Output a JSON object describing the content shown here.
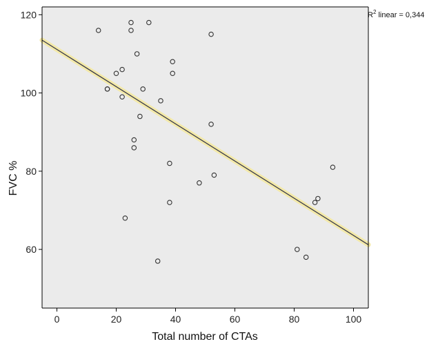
{
  "chart_data": {
    "type": "scatter",
    "xlabel": "Total number of CTAs",
    "ylabel": "FVC %",
    "xlim": [
      -5,
      105
    ],
    "ylim": [
      45,
      122
    ],
    "x_ticks": [
      0,
      20,
      40,
      60,
      80,
      100
    ],
    "y_ticks": [
      60,
      80,
      100,
      120
    ],
    "x_tick_labels": [
      "0",
      "20",
      "40",
      "60",
      "80",
      "100"
    ],
    "y_tick_labels": [
      "60",
      "80",
      "100",
      "120"
    ],
    "grid": false,
    "points": [
      {
        "x": 14,
        "y": 116
      },
      {
        "x": 17,
        "y": 101
      },
      {
        "x": 17,
        "y": 101
      },
      {
        "x": 20,
        "y": 105
      },
      {
        "x": 22,
        "y": 106
      },
      {
        "x": 22,
        "y": 99
      },
      {
        "x": 23,
        "y": 68
      },
      {
        "x": 25,
        "y": 118
      },
      {
        "x": 25,
        "y": 116
      },
      {
        "x": 26,
        "y": 88
      },
      {
        "x": 26,
        "y": 86
      },
      {
        "x": 27,
        "y": 110
      },
      {
        "x": 28,
        "y": 94
      },
      {
        "x": 29,
        "y": 101
      },
      {
        "x": 31,
        "y": 118
      },
      {
        "x": 34,
        "y": 57
      },
      {
        "x": 35,
        "y": 98
      },
      {
        "x": 38,
        "y": 82
      },
      {
        "x": 38,
        "y": 72
      },
      {
        "x": 39,
        "y": 108
      },
      {
        "x": 39,
        "y": 105
      },
      {
        "x": 48,
        "y": 77
      },
      {
        "x": 52,
        "y": 115
      },
      {
        "x": 52,
        "y": 92
      },
      {
        "x": 53,
        "y": 79
      },
      {
        "x": 81,
        "y": 60
      },
      {
        "x": 84,
        "y": 58
      },
      {
        "x": 87,
        "y": 72
      },
      {
        "x": 88,
        "y": 73
      },
      {
        "x": 93,
        "y": 81
      }
    ],
    "fit_line": {
      "x": [
        -5,
        105
      ],
      "y": [
        113.5,
        61.2
      ]
    },
    "r2_prefix": "R",
    "r2_superscript": "2",
    "r2_text": " linear = 0,344",
    "colors": {
      "plot_background": "#ebebeb",
      "marker_stroke": "#333333",
      "fit_line": "#3a3a4a",
      "fit_halo": "#f3e9a8"
    }
  }
}
